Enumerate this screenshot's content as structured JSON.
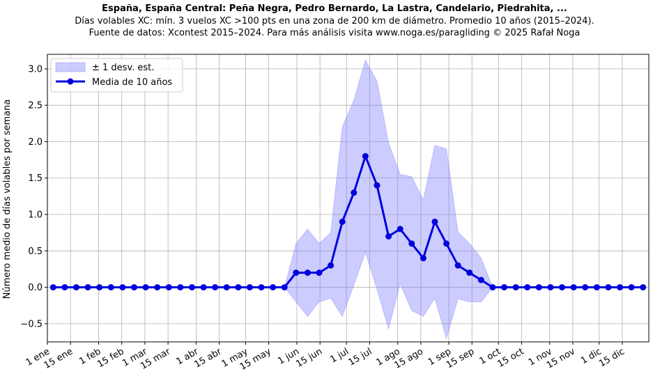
{
  "chart_data": {
    "type": "line",
    "title": "España, España Central: Peña Negra, Pedro Bernardo, La Lastra, Candelario, Piedrahita, ...",
    "subtitle_lines": [
      "Días volables XC: mín. 3 vuelos XC >100 pts en una zona de 200 km de diámetro. Promedio 10 años (2015–2024).",
      "Fuente de datos: Xcontest 2015–2024. Para más análisis visita www.noga.es/paragliding © 2025 Rafał Noga"
    ],
    "xlabel": "",
    "ylabel": "Número medio de días volables por semana",
    "ylim": [
      -0.75,
      3.2
    ],
    "xlim": [
      0,
      52
    ],
    "y_ticks": [
      -0.5,
      0.0,
      0.5,
      1.0,
      1.5,
      2.0,
      2.5,
      3.0
    ],
    "y_tick_labels": [
      "−0.5",
      "0.0",
      "0.5",
      "1.0",
      "1.5",
      "2.0",
      "2.5",
      "3.0"
    ],
    "x_ticks": [
      0,
      2,
      4.43,
      6.43,
      8.43,
      10.43,
      12.86,
      14.86,
      17.14,
      19.14,
      21.57,
      23.57,
      25.86,
      27.86,
      30.29,
      32.29,
      34.71,
      36.71,
      39,
      41,
      43.43,
      45.43,
      47.71,
      49.71
    ],
    "x_tick_labels": [
      "1 ene",
      "15 ene",
      "1 feb",
      "15 feb",
      "1 mar",
      "15 mar",
      "1 abr",
      "15 abr",
      "1 may",
      "15 may",
      "1 jun",
      "15 jun",
      "1 jul",
      "15 jul",
      "1 ago",
      "15 ago",
      "1 sep",
      "15 sep",
      "1 oct",
      "15 oct",
      "1 nov",
      "15 nov",
      "1 dic",
      "15 dic"
    ],
    "grid": true,
    "legend_position": "top-left",
    "series": [
      {
        "name": "Media de 10 años",
        "color": "#0000dd",
        "x": [
          0.5,
          1.5,
          2.5,
          3.5,
          4.5,
          5.5,
          6.5,
          7.5,
          8.5,
          9.5,
          10.5,
          11.5,
          12.5,
          13.5,
          14.5,
          15.5,
          16.5,
          17.5,
          18.5,
          19.5,
          20.5,
          21.5,
          22.5,
          23.5,
          24.5,
          25.5,
          26.5,
          27.5,
          28.5,
          29.5,
          30.5,
          31.5,
          32.5,
          33.5,
          34.5,
          35.5,
          36.5,
          37.5,
          38.5,
          39.5,
          40.5,
          41.5,
          42.5,
          43.5,
          44.5,
          45.5,
          46.5,
          47.5,
          48.5,
          49.5,
          50.5,
          51.5
        ],
        "values": [
          0,
          0,
          0,
          0,
          0,
          0,
          0,
          0,
          0,
          0,
          0,
          0,
          0,
          0,
          0,
          0,
          0,
          0,
          0,
          0,
          0,
          0.2,
          0.2,
          0.2,
          0.3,
          0.9,
          1.3,
          1.8,
          1.4,
          0.7,
          0.8,
          0.6,
          0.4,
          0.9,
          0.6,
          0.3,
          0.2,
          0.1,
          0,
          0,
          0,
          0,
          0,
          0,
          0,
          0,
          0,
          0,
          0,
          0,
          0,
          0
        ]
      },
      {
        "name": "± 1 desv. est.",
        "color": "#8080ff",
        "x": [
          0.5,
          1.5,
          2.5,
          3.5,
          4.5,
          5.5,
          6.5,
          7.5,
          8.5,
          9.5,
          10.5,
          11.5,
          12.5,
          13.5,
          14.5,
          15.5,
          16.5,
          17.5,
          18.5,
          19.5,
          20.5,
          21.5,
          22.5,
          23.5,
          24.5,
          25.5,
          26.5,
          27.5,
          28.5,
          29.5,
          30.5,
          31.5,
          32.5,
          33.5,
          34.5,
          35.5,
          36.5,
          37.5,
          38.5,
          39.5,
          40.5,
          41.5,
          42.5,
          43.5,
          44.5,
          45.5,
          46.5,
          47.5,
          48.5,
          49.5,
          50.5,
          51.5
        ],
        "upper": [
          0,
          0,
          0,
          0,
          0,
          0,
          0,
          0,
          0,
          0,
          0,
          0,
          0,
          0,
          0,
          0,
          0,
          0,
          0,
          0,
          0,
          0.6,
          0.8,
          0.6,
          0.75,
          2.2,
          2.57,
          3.12,
          2.83,
          1.98,
          1.55,
          1.52,
          1.2,
          1.95,
          1.9,
          0.76,
          0.6,
          0.4,
          0,
          0,
          0,
          0,
          0,
          0,
          0,
          0,
          0,
          0,
          0,
          0,
          0,
          0
        ],
        "lower": [
          0,
          0,
          0,
          0,
          0,
          0,
          0,
          0,
          0,
          0,
          0,
          0,
          0,
          0,
          0,
          0,
          0,
          0,
          0,
          0,
          0,
          -0.2,
          -0.4,
          -0.2,
          -0.15,
          -0.4,
          0.03,
          0.48,
          -0.03,
          -0.57,
          0.05,
          -0.32,
          -0.4,
          -0.15,
          -0.7,
          -0.16,
          -0.2,
          -0.2,
          0,
          0,
          0,
          0,
          0,
          0,
          0,
          0,
          0,
          0,
          0,
          0,
          0,
          0
        ]
      }
    ]
  }
}
